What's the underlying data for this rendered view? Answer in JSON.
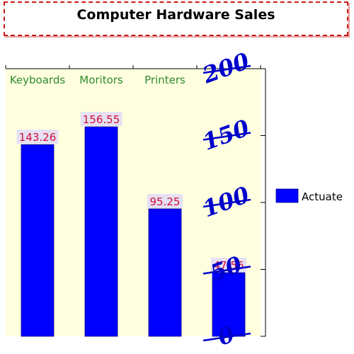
{
  "chart_data": {
    "type": "bar",
    "title": "Computer Hardware Sales",
    "categories": [
      "Keyboards",
      "Moritors",
      "Printers",
      ""
    ],
    "series": [
      {
        "name": "Actuate",
        "values": [
          143.26,
          156.55,
          95.25,
          47.56
        ]
      }
    ],
    "value_labels": [
      "143.26",
      "156.55",
      "95.25",
      "47.56"
    ],
    "y_ticks": [
      "0",
      "50",
      "100",
      "150",
      "200"
    ],
    "ylim": [
      0,
      200
    ],
    "x_axis_position": "top",
    "y_axis_position": "right",
    "legend_position": "right",
    "grid": false
  },
  "colors": {
    "bar": "#0000ff",
    "plot_background": "#ffffe0",
    "category_label": "#2e8b2e",
    "value_label": "#d0103a",
    "value_label_bg": "#e6e0f2",
    "tick_label": "#0000cc",
    "title_border": "#cc1a1a",
    "axis": "#000000"
  }
}
